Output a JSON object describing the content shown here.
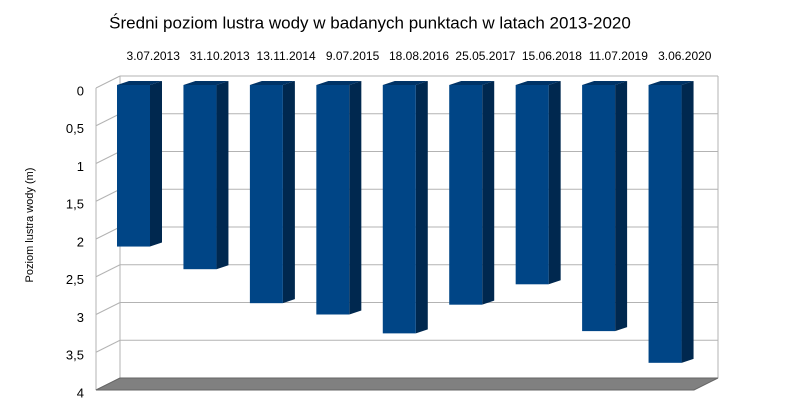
{
  "chart_data": {
    "type": "bar3d",
    "title": "Średni poziom lustra wody w badanych punktach w latach 2013-2020",
    "y_label": "Poziom lustra wody (m)",
    "categories": [
      "3.07.2013",
      "31.10.2013",
      "13.11.2014",
      "9.07.2015",
      "18.08.2016",
      "25.05.2017",
      "15.06.2018",
      "11.07.2019",
      "3.06.2020"
    ],
    "values": [
      2.1,
      2.4,
      2.85,
      3.0,
      3.25,
      2.87,
      2.6,
      3.22,
      3.64
    ],
    "color": "#004586",
    "ylim": [
      0,
      4
    ],
    "y_inverted": true,
    "yticks": [
      0,
      {
        "value": 0.5,
        "label": "0,5"
      },
      1,
      {
        "value": 1.5,
        "label": "1,5"
      },
      2,
      {
        "value": 2.5,
        "label": "2,5"
      },
      3,
      {
        "value": 3.5,
        "label": "3,5"
      },
      4
    ],
    "grid": true
  }
}
